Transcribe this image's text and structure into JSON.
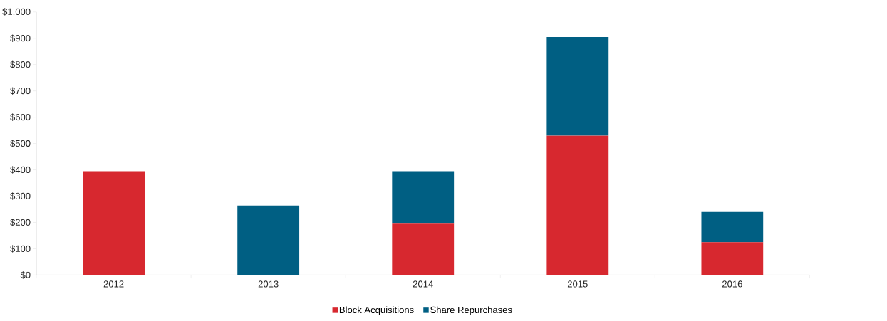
{
  "chart_data": {
    "type": "bar",
    "stacked": true,
    "categories": [
      "2012",
      "2013",
      "2014",
      "2015",
      "2016"
    ],
    "series": [
      {
        "name": "Block Acquisitions",
        "color": "#d7282f",
        "values": [
          395,
          0,
          195,
          530,
          125
        ]
      },
      {
        "name": "Share Repurchases",
        "color": "#005f83",
        "values": [
          0,
          264,
          200,
          375,
          115
        ]
      }
    ],
    "ylim": [
      0,
      1000
    ],
    "yticks": [
      {
        "value": 0,
        "label": "$0"
      },
      {
        "value": 100,
        "label": "$100"
      },
      {
        "value": 200,
        "label": "$200"
      },
      {
        "value": 300,
        "label": "$300"
      },
      {
        "value": 400,
        "label": "$400"
      },
      {
        "value": 500,
        "label": "$500"
      },
      {
        "value": 600,
        "label": "$600"
      },
      {
        "value": 700,
        "label": "$700"
      },
      {
        "value": 800,
        "label": "$800"
      },
      {
        "value": 900,
        "label": "$900"
      },
      {
        "value": 1000,
        "label": "$1,000"
      }
    ],
    "grid": false,
    "legend": "bottom"
  }
}
